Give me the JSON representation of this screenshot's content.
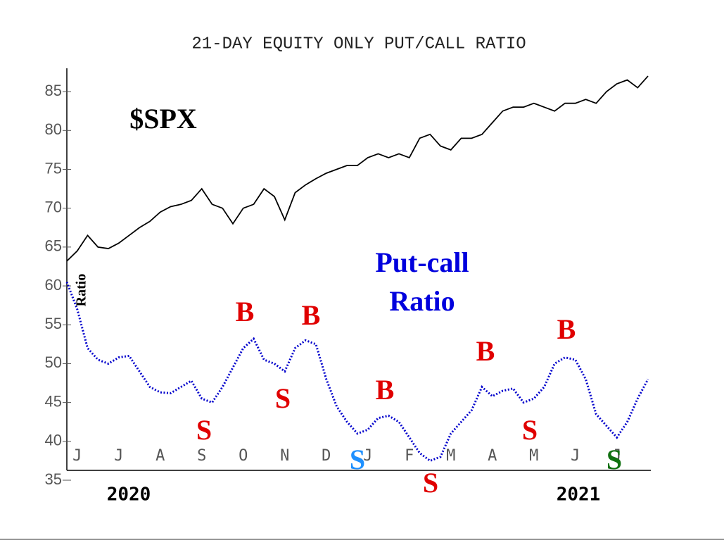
{
  "chart_data": {
    "type": "line",
    "title": "21-DAY EQUITY ONLY PUT/CALL RATIO",
    "ylabel": "Ratio",
    "annotations": [
      {
        "text": "$SPX",
        "color": "#000000"
      },
      {
        "text": "Put-call",
        "color": "#0000dd"
      },
      {
        "text": "Ratio",
        "color": "#0000dd"
      }
    ],
    "years": [
      "2020",
      "2021"
    ],
    "signals": [
      {
        "label": "S",
        "color": "#e00000"
      },
      {
        "label": "B",
        "color": "#e00000"
      },
      {
        "label": "S",
        "color": "#e00000"
      },
      {
        "label": "B",
        "color": "#e00000"
      },
      {
        "label": "S",
        "color": "#1e90ff"
      },
      {
        "label": "B",
        "color": "#e00000"
      },
      {
        "label": "S",
        "color": "#e00000"
      },
      {
        "label": "B",
        "color": "#e00000"
      },
      {
        "label": "S",
        "color": "#e00000"
      },
      {
        "label": "B",
        "color": "#e00000"
      },
      {
        "label": "S",
        "color": "#107010"
      }
    ],
    "categories": [
      null,
      "J",
      null,
      null,
      null,
      "J",
      null,
      null,
      null,
      "A",
      null,
      null,
      null,
      "S",
      null,
      null,
      null,
      "O",
      null,
      null,
      null,
      "N",
      null,
      null,
      null,
      "D",
      null,
      null,
      null,
      "J",
      null,
      null,
      null,
      "F",
      null,
      null,
      null,
      "M",
      null,
      null,
      null,
      "A",
      null,
      null,
      null,
      "M",
      null,
      null,
      null,
      "J",
      null,
      null,
      null,
      "J",
      null,
      null,
      null
    ],
    "series": [
      {
        "color": "#000000",
        "line_style": "solid",
        "values": [
          63.2,
          64.5,
          66.5,
          65,
          64.8,
          65.5,
          66.5,
          67.5,
          68.3,
          69.5,
          70.2,
          70.5,
          71,
          72.5,
          70.5,
          70,
          68,
          70,
          70.5,
          72.5,
          71.5,
          68.5,
          72,
          73,
          73.8,
          74.5,
          75,
          75.5,
          75.5,
          76.5,
          77,
          76.5,
          77,
          76.5,
          79,
          79.5,
          78,
          77.5,
          79,
          79,
          79.5,
          81,
          82.5,
          83,
          83,
          83.5,
          83,
          82.5,
          83.5,
          83.5,
          84,
          83.5,
          85,
          86,
          86.5,
          85.5,
          87
        ]
      },
      {
        "color": "#0000cc",
        "line_style": "dotted",
        "values": [
          60.5,
          57,
          52,
          50.5,
          50,
          50.8,
          51,
          49,
          47,
          46.3,
          46.2,
          47,
          47.8,
          45.5,
          45,
          47,
          49.5,
          52,
          53.2,
          50.5,
          50,
          49,
          52,
          53,
          52.5,
          48,
          44.5,
          42.5,
          41,
          41.5,
          43,
          43.3,
          42.5,
          40.5,
          38.5,
          37.5,
          38,
          41,
          42.5,
          44,
          47,
          45.8,
          46.5,
          46.8,
          45,
          45.5,
          47,
          50,
          50.8,
          50.5,
          48,
          43.5,
          42,
          40.5,
          42.5,
          45.5,
          48
        ]
      }
    ],
    "ylim": [
      35,
      88
    ],
    "yticks": [
      35,
      40,
      45,
      50,
      55,
      60,
      65,
      70,
      75,
      80,
      85
    ]
  }
}
